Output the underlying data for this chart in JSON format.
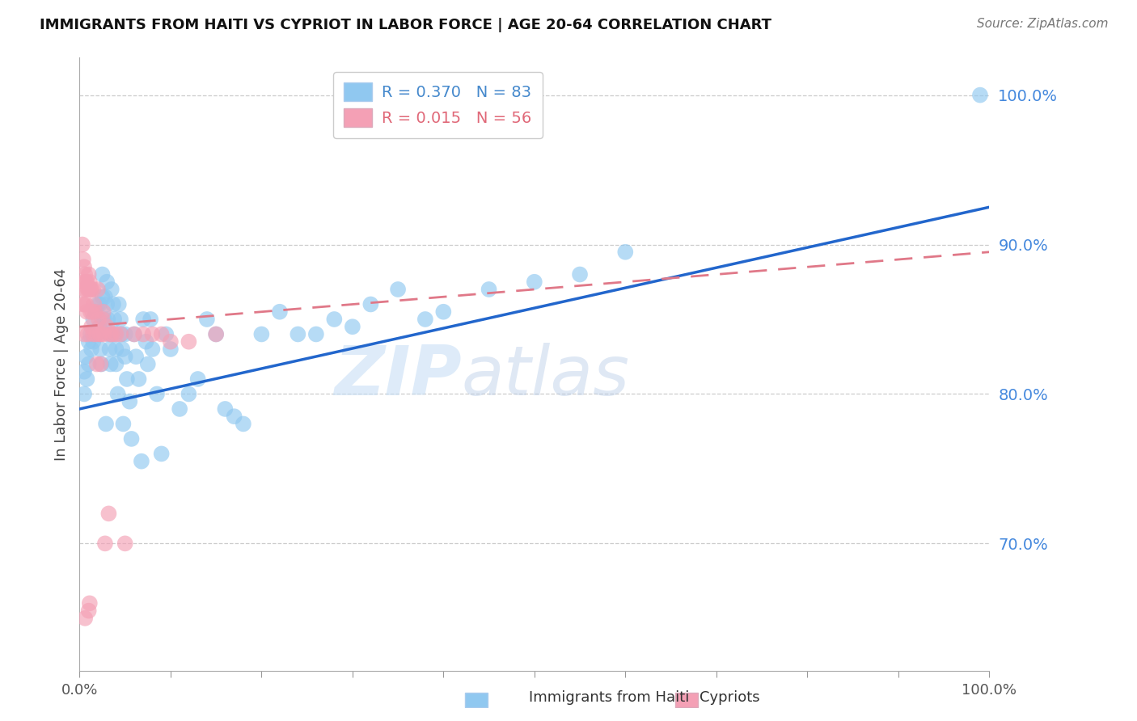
{
  "title": "IMMIGRANTS FROM HAITI VS CYPRIOT IN LABOR FORCE | AGE 20-64 CORRELATION CHART",
  "source": "Source: ZipAtlas.com",
  "ylabel": "In Labor Force | Age 20-64",
  "xlim": [
    0.0,
    1.0
  ],
  "ylim": [
    0.615,
    1.025
  ],
  "yticks": [
    0.7,
    0.8,
    0.9,
    1.0
  ],
  "ytick_labels": [
    "70.0%",
    "80.0%",
    "90.0%",
    "100.0%"
  ],
  "xticks": [
    0.0,
    0.1,
    0.2,
    0.3,
    0.4,
    0.5,
    0.6,
    0.7,
    0.8,
    0.9,
    1.0
  ],
  "xtick_labels": [
    "0.0%",
    "",
    "",
    "",
    "",
    "",
    "",
    "",
    "",
    "",
    "100.0%"
  ],
  "haiti_color": "#90c8f0",
  "cypriot_color": "#f4a0b5",
  "haiti_line_color": "#2266cc",
  "cypriot_line_color": "#e07888",
  "watermark_zip": "ZIP",
  "watermark_atlas": "atlas",
  "legend_haiti_r": "R = 0.370",
  "legend_haiti_n": "N = 83",
  "legend_cypriot_r": "R = 0.015",
  "legend_cypriot_n": "N = 56",
  "haiti_r": 0.37,
  "cypriot_r": 0.015,
  "haiti_x": [
    0.005,
    0.005,
    0.007,
    0.008,
    0.01,
    0.01,
    0.012,
    0.013,
    0.015,
    0.015,
    0.017,
    0.018,
    0.02,
    0.02,
    0.022,
    0.022,
    0.023,
    0.024,
    0.025,
    0.025,
    0.027,
    0.028,
    0.029,
    0.03,
    0.03,
    0.031,
    0.032,
    0.033,
    0.034,
    0.035,
    0.035,
    0.037,
    0.038,
    0.039,
    0.04,
    0.04,
    0.042,
    0.043,
    0.045,
    0.046,
    0.047,
    0.048,
    0.05,
    0.05,
    0.052,
    0.055,
    0.057,
    0.06,
    0.062,
    0.065,
    0.068,
    0.07,
    0.073,
    0.075,
    0.078,
    0.08,
    0.085,
    0.09,
    0.095,
    0.1,
    0.11,
    0.12,
    0.13,
    0.14,
    0.15,
    0.16,
    0.17,
    0.18,
    0.2,
    0.22,
    0.24,
    0.26,
    0.28,
    0.3,
    0.32,
    0.35,
    0.38,
    0.4,
    0.45,
    0.5,
    0.55,
    0.6,
    0.99
  ],
  "haiti_y": [
    0.8,
    0.815,
    0.825,
    0.81,
    0.835,
    0.82,
    0.84,
    0.83,
    0.85,
    0.835,
    0.84,
    0.855,
    0.86,
    0.84,
    0.86,
    0.845,
    0.83,
    0.82,
    0.88,
    0.865,
    0.85,
    0.865,
    0.78,
    0.875,
    0.86,
    0.85,
    0.84,
    0.83,
    0.82,
    0.87,
    0.84,
    0.86,
    0.85,
    0.84,
    0.83,
    0.82,
    0.8,
    0.86,
    0.85,
    0.84,
    0.83,
    0.78,
    0.84,
    0.825,
    0.81,
    0.795,
    0.77,
    0.84,
    0.825,
    0.81,
    0.755,
    0.85,
    0.835,
    0.82,
    0.85,
    0.83,
    0.8,
    0.76,
    0.84,
    0.83,
    0.79,
    0.8,
    0.81,
    0.85,
    0.84,
    0.79,
    0.785,
    0.78,
    0.84,
    0.855,
    0.84,
    0.84,
    0.85,
    0.845,
    0.86,
    0.87,
    0.85,
    0.855,
    0.87,
    0.875,
    0.88,
    0.895,
    1.0
  ],
  "cypriot_x": [
    0.003,
    0.003,
    0.004,
    0.004,
    0.005,
    0.005,
    0.005,
    0.005,
    0.006,
    0.006,
    0.006,
    0.007,
    0.007,
    0.008,
    0.008,
    0.009,
    0.009,
    0.01,
    0.01,
    0.01,
    0.011,
    0.011,
    0.012,
    0.012,
    0.013,
    0.013,
    0.014,
    0.015,
    0.015,
    0.016,
    0.017,
    0.018,
    0.019,
    0.02,
    0.021,
    0.022,
    0.023,
    0.024,
    0.025,
    0.026,
    0.027,
    0.028,
    0.03,
    0.032,
    0.034,
    0.036,
    0.04,
    0.045,
    0.05,
    0.06,
    0.07,
    0.08,
    0.09,
    0.1,
    0.12,
    0.15
  ],
  "cypriot_y": [
    0.9,
    0.87,
    0.89,
    0.86,
    0.885,
    0.875,
    0.86,
    0.84,
    0.88,
    0.87,
    0.65,
    0.875,
    0.86,
    0.875,
    0.855,
    0.87,
    0.84,
    0.88,
    0.87,
    0.655,
    0.875,
    0.66,
    0.87,
    0.855,
    0.87,
    0.845,
    0.855,
    0.87,
    0.84,
    0.86,
    0.855,
    0.84,
    0.82,
    0.87,
    0.85,
    0.84,
    0.82,
    0.84,
    0.85,
    0.855,
    0.84,
    0.7,
    0.845,
    0.72,
    0.84,
    0.84,
    0.84,
    0.84,
    0.7,
    0.84,
    0.84,
    0.84,
    0.84,
    0.835,
    0.835,
    0.84
  ]
}
